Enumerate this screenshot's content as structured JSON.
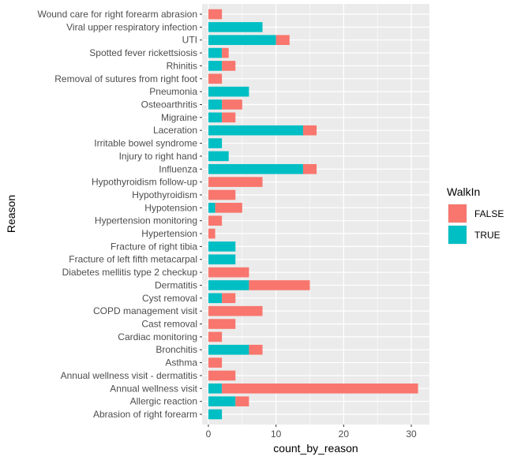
{
  "chart_data": {
    "type": "bar",
    "orientation": "horizontal",
    "stacked": true,
    "xlabel": "count_by_reason",
    "ylabel": "Reason",
    "xlim": [
      0,
      32
    ],
    "xticks": [
      0,
      10,
      20,
      30
    ],
    "grid": true,
    "legend_title": "WalkIn",
    "legend_position": "right",
    "categories": [
      "Abrasion of right forearm",
      "Allergic reaction",
      "Annual wellness visit",
      "Annual wellness visit - dermatitis",
      "Asthma",
      "Bronchitis",
      "Cardiac monitoring",
      "Cast removal",
      "COPD management visit",
      "Cyst removal",
      "Dermatitis",
      "Diabetes mellitis type 2 checkup",
      "Fracture of left fifth metacarpal",
      "Fracture of right tibia",
      "Hypertension",
      "Hypertension monitoring",
      "Hypotension",
      "Hypothyroidism",
      "Hypothyroidism follow-up",
      "Influenza",
      "Injury to right hand",
      "Irritable bowel syndrome",
      "Laceration",
      "Migraine",
      "Osteoarthritis",
      "Pneumonia",
      "Removal of sutures from right foot",
      "Rhinitis",
      "Spotted fever rickettsiosis",
      "UTI",
      "Viral upper respiratory infection",
      "Wound care for right forearm abrasion"
    ],
    "series": [
      {
        "name": "TRUE",
        "color": "#00BFC4",
        "values": [
          2,
          4,
          2,
          0,
          0,
          6,
          0,
          0,
          0,
          2,
          6,
          0,
          4,
          4,
          0,
          0,
          1,
          0,
          0,
          14,
          3,
          2,
          14,
          2,
          2,
          6,
          0,
          2,
          2,
          10,
          8,
          0
        ]
      },
      {
        "name": "FALSE",
        "color": "#F8766D",
        "values": [
          0,
          2,
          29,
          4,
          2,
          2,
          2,
          4,
          8,
          2,
          9,
          6,
          0,
          0,
          1,
          2,
          4,
          4,
          8,
          2,
          0,
          0,
          2,
          2,
          3,
          0,
          2,
          2,
          1,
          2,
          0,
          2
        ]
      }
    ],
    "legend_order": [
      "FALSE",
      "TRUE"
    ]
  }
}
